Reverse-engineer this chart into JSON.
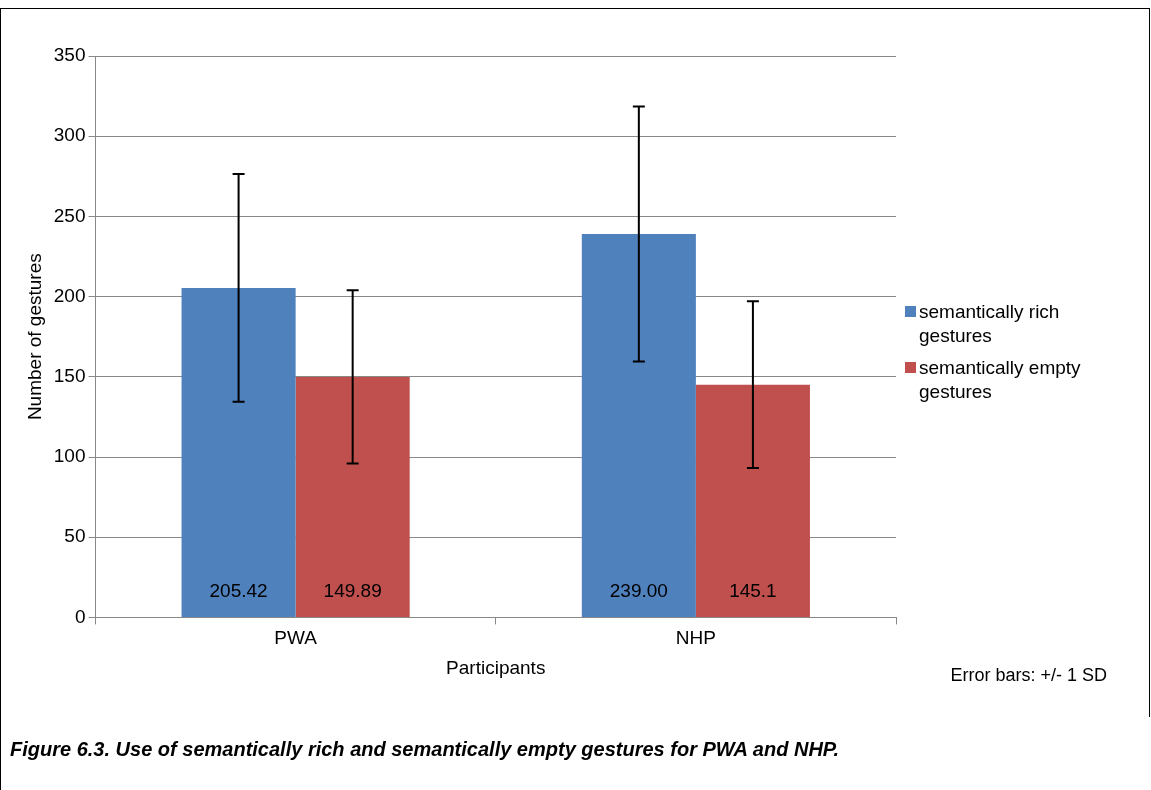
{
  "chart_data": {
    "type": "bar",
    "xlabel": "Participants",
    "ylabel": "Number of gestures",
    "categories": [
      "PWA",
      "NHP"
    ],
    "series": [
      {
        "name": "semantically rich gestures",
        "color": "#4f81bd",
        "values": [
          205.42,
          239.0
        ],
        "errors": [
          71,
          79.5
        ],
        "value_labels": [
          "205.42",
          "239.00"
        ]
      },
      {
        "name": "semantically empty gestures",
        "color": "#c0504d",
        "values": [
          149.89,
          145.1
        ],
        "errors": [
          54,
          52
        ],
        "value_labels": [
          "149.89",
          "145.1"
        ]
      }
    ],
    "ylim": [
      0,
      350
    ],
    "yticks": [
      0,
      50,
      100,
      150,
      200,
      250,
      300,
      350
    ],
    "grid": "y",
    "legend": "right",
    "annotations": [
      "Error bars: +/- 1 SD",
      "Figure 6.3. Use of semantically rich and semantically empty gestures for PWA and NHP."
    ]
  }
}
